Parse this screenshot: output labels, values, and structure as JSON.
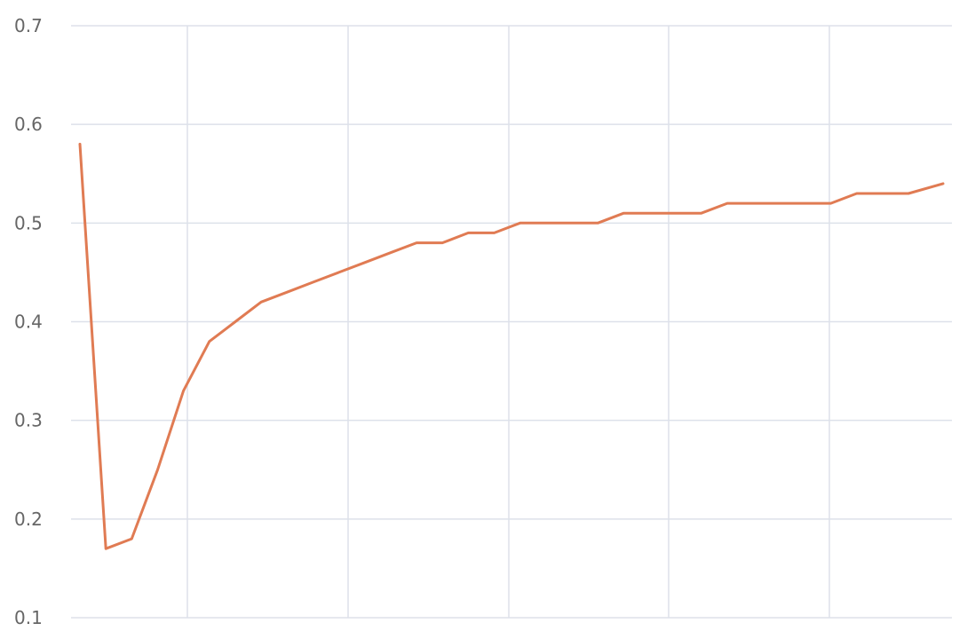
{
  "chart_data": {
    "type": "line",
    "title": "",
    "xlabel": "",
    "ylabel": "",
    "ylim": [
      0.1,
      0.7
    ],
    "yticks": [
      "0.1",
      "0.2",
      "0.3",
      "0.4",
      "0.5",
      "0.6",
      "0.7"
    ],
    "grid": true,
    "legend": "none",
    "series_color": "#e07b53",
    "series": [
      {
        "x": [
          0,
          0.03,
          0.06,
          0.09,
          0.12,
          0.15,
          0.18,
          0.21,
          0.24,
          0.27,
          0.3,
          0.33,
          0.36,
          0.39,
          0.42,
          0.45,
          0.48,
          0.51,
          0.54,
          0.57,
          0.6,
          0.63,
          0.66,
          0.69,
          0.72,
          0.75,
          0.78,
          0.81,
          0.84,
          0.87,
          0.9,
          0.93,
          0.96,
          1.0
        ],
        "y": [
          0.58,
          0.17,
          0.18,
          0.25,
          0.33,
          0.38,
          0.4,
          0.42,
          0.43,
          0.44,
          0.45,
          0.46,
          0.47,
          0.48,
          0.48,
          0.49,
          0.49,
          0.5,
          0.5,
          0.5,
          0.5,
          0.51,
          0.51,
          0.51,
          0.51,
          0.52,
          0.52,
          0.52,
          0.52,
          0.52,
          0.53,
          0.53,
          0.53,
          0.54
        ]
      }
    ]
  }
}
